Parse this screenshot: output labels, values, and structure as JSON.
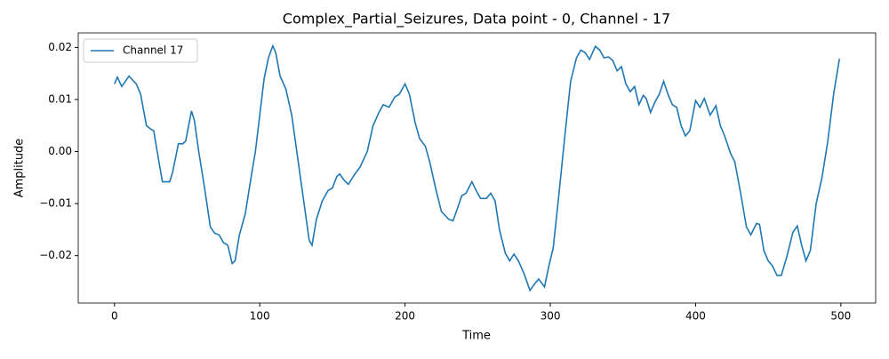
{
  "chart_data": {
    "type": "line",
    "title": "Complex_Partial_Seizures, Data point - 0, Channel - 17",
    "x_label": "Time",
    "y_label": "Amplitude",
    "legend": "upper left",
    "xlim": [
      -24.95,
      523.95
    ],
    "xticks": [
      0,
      100,
      200,
      300,
      400,
      500
    ],
    "ylim": [
      -0.0291,
      0.0228
    ],
    "yticks": [
      {
        "value": -0.02,
        "label": "−0.02"
      },
      {
        "value": -0.01,
        "label": "−0.01"
      },
      {
        "value": 0,
        "label": "0.00"
      },
      0.01,
      0.02
    ],
    "series": [
      {
        "name": "Channel 17",
        "color": "#1f77b4",
        "x": [
          0,
          2,
          5,
          10,
          15,
          18,
          22,
          25,
          27,
          30,
          33,
          38,
          40,
          44,
          47,
          49,
          53,
          55,
          58,
          62,
          66,
          69,
          72,
          75,
          78,
          81,
          83,
          86,
          90,
          94,
          97,
          100,
          103,
          106,
          109,
          111,
          114,
          118,
          122,
          125,
          128,
          131,
          134,
          136,
          139,
          143,
          147,
          150,
          153,
          155,
          158,
          161,
          165,
          169,
          174,
          178,
          182,
          185,
          189,
          193,
          196,
          200,
          203,
          207,
          210,
          214,
          217,
          221,
          225,
          230,
          233,
          236,
          239,
          242,
          246,
          249,
          252,
          256,
          259,
          262,
          265,
          269,
          272,
          275,
          278,
          282,
          286,
          289,
          292,
          296,
          299,
          302,
          306,
          310,
          314,
          318,
          321,
          324,
          327,
          331,
          334,
          337,
          340,
          343,
          346,
          349,
          352,
          355,
          358,
          361,
          364,
          366,
          369,
          372,
          375,
          378,
          381,
          384,
          387,
          390,
          393,
          396,
          400,
          403,
          406,
          410,
          414,
          417,
          420,
          424,
          427,
          431,
          435,
          438,
          442,
          444,
          447,
          450,
          453,
          456,
          459,
          463,
          467,
          470,
          473,
          476,
          479,
          483,
          487,
          491,
          495,
          499
        ],
        "values": [
          0.013,
          0.0143,
          0.0125,
          0.0145,
          0.013,
          0.011,
          0.005,
          0.0043,
          0.004,
          -0.001,
          -0.0058,
          -0.0058,
          -0.004,
          0.0015,
          0.0015,
          0.002,
          0.0078,
          0.006,
          0.0,
          -0.007,
          -0.0145,
          -0.0157,
          -0.016,
          -0.0175,
          -0.018,
          -0.0215,
          -0.021,
          -0.016,
          -0.012,
          -0.005,
          0.0,
          0.007,
          0.014,
          0.018,
          0.0203,
          0.019,
          0.0145,
          0.012,
          0.007,
          0.001,
          -0.005,
          -0.011,
          -0.017,
          -0.018,
          -0.013,
          -0.0095,
          -0.0075,
          -0.007,
          -0.0048,
          -0.0043,
          -0.0055,
          -0.0063,
          -0.0045,
          -0.003,
          0.0,
          0.005,
          0.0075,
          0.009,
          0.0085,
          0.0105,
          0.011,
          0.013,
          0.011,
          0.0055,
          0.0025,
          0.001,
          -0.002,
          -0.007,
          -0.0115,
          -0.013,
          -0.0133,
          -0.011,
          -0.0085,
          -0.008,
          -0.0058,
          -0.0075,
          -0.009,
          -0.009,
          -0.008,
          -0.0095,
          -0.015,
          -0.0195,
          -0.021,
          -0.0197,
          -0.021,
          -0.0235,
          -0.0267,
          -0.0255,
          -0.0245,
          -0.026,
          -0.022,
          -0.0185,
          -0.008,
          0.003,
          0.0135,
          0.018,
          0.0195,
          0.019,
          0.0177,
          0.0202,
          0.0195,
          0.018,
          0.0182,
          0.0175,
          0.0155,
          0.0163,
          0.013,
          0.0115,
          0.0125,
          0.009,
          0.0108,
          0.0102,
          0.0075,
          0.0095,
          0.011,
          0.0135,
          0.011,
          0.009,
          0.0085,
          0.005,
          0.003,
          0.004,
          0.0098,
          0.0085,
          0.0102,
          0.007,
          0.0088,
          0.005,
          0.003,
          -0.0003,
          -0.002,
          -0.008,
          -0.0145,
          -0.016,
          -0.0138,
          -0.014,
          -0.019,
          -0.021,
          -0.022,
          -0.0238,
          -0.0238,
          -0.02,
          -0.0155,
          -0.0143,
          -0.018,
          -0.021,
          -0.019,
          -0.01,
          -0.005,
          0.002,
          0.011,
          0.0178
        ]
      }
    ]
  }
}
